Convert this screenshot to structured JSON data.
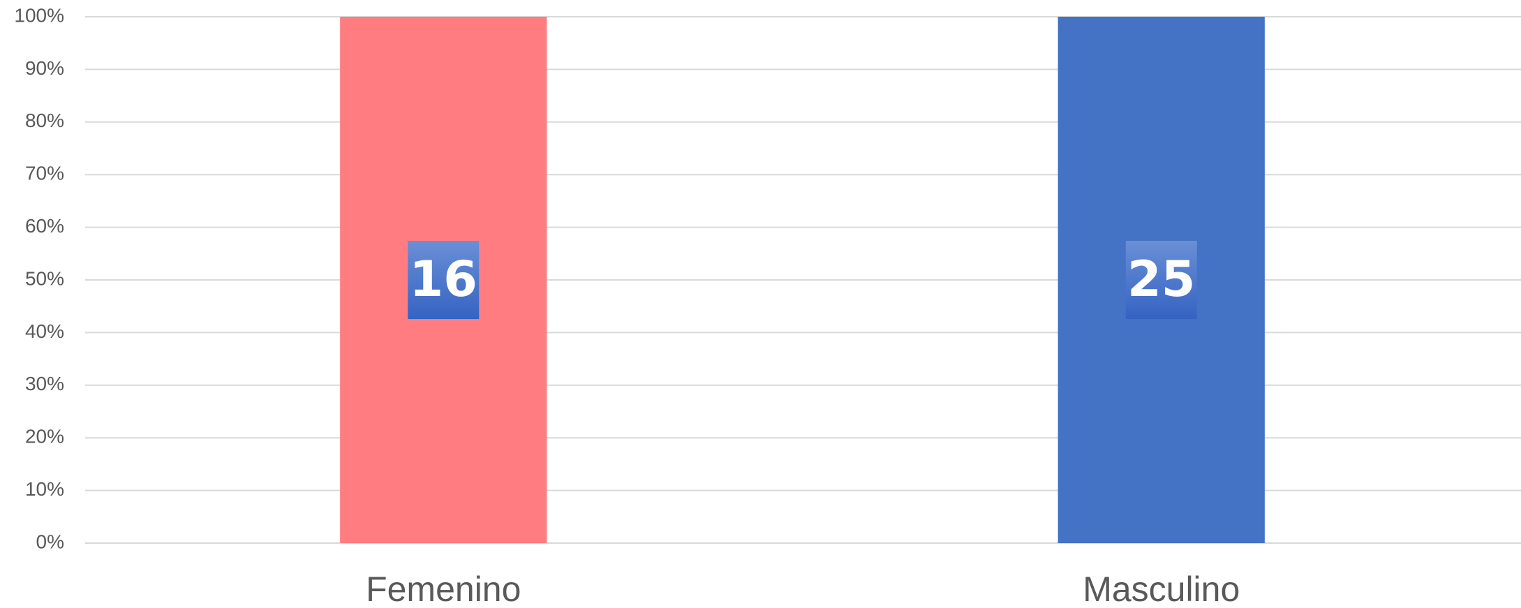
{
  "chart_data": {
    "type": "bar",
    "stacked": "percent",
    "categories": [
      "Femenino",
      "Masculino"
    ],
    "values": [
      16,
      25
    ],
    "colors": [
      "#ff7c80",
      "#4472c4"
    ],
    "ylim": [
      0,
      100
    ],
    "yticks": [
      {
        "value": 0,
        "label": "0%"
      },
      {
        "value": 10,
        "label": "10%"
      },
      {
        "value": 20,
        "label": "20%"
      },
      {
        "value": 30,
        "label": "30%"
      },
      {
        "value": 40,
        "label": "40%"
      },
      {
        "value": 50,
        "label": "50%"
      },
      {
        "value": 60,
        "label": "60%"
      },
      {
        "value": 70,
        "label": "70%"
      },
      {
        "value": 80,
        "label": "80%"
      },
      {
        "value": 90,
        "label": "90%"
      },
      {
        "value": 100,
        "label": "100%"
      }
    ],
    "grid": true
  }
}
